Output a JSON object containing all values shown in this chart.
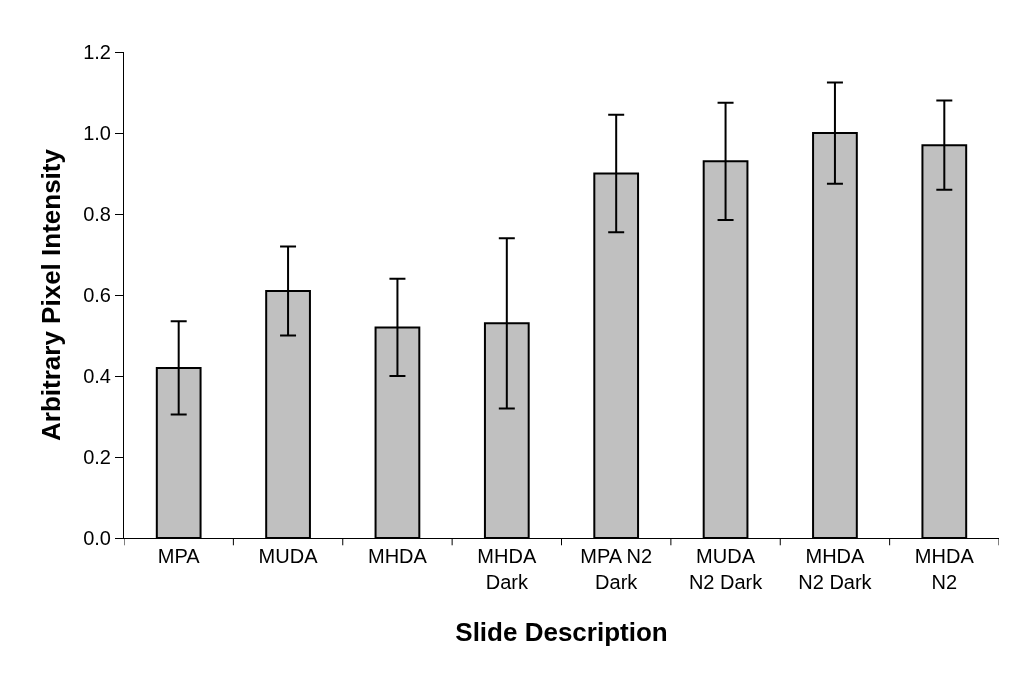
{
  "chart_data": {
    "type": "bar",
    "xlabel": "Slide Description",
    "ylabel": "Arbitrary Pixel Intensity",
    "categories": [
      "MPA",
      "MUDA",
      "MHDA",
      "MHDA\nDark",
      "MPA N2\nDark",
      "MUDA\nN2 Dark",
      "MHDA\nN2 Dark",
      "MHDA\nN2"
    ],
    "values": [
      0.42,
      0.61,
      0.52,
      0.53,
      0.9,
      0.93,
      1.0,
      0.97
    ],
    "errors": [
      0.115,
      0.11,
      0.12,
      0.21,
      0.145,
      0.145,
      0.125,
      0.11
    ],
    "color": "#c0c0c0",
    "ylim": [
      0,
      1.2
    ],
    "yticks": [
      {
        "value": 0,
        "label": "0.0"
      },
      0.2,
      0.4,
      0.6,
      0.8,
      {
        "value": 1,
        "label": "1.0"
      },
      1.2
    ]
  }
}
